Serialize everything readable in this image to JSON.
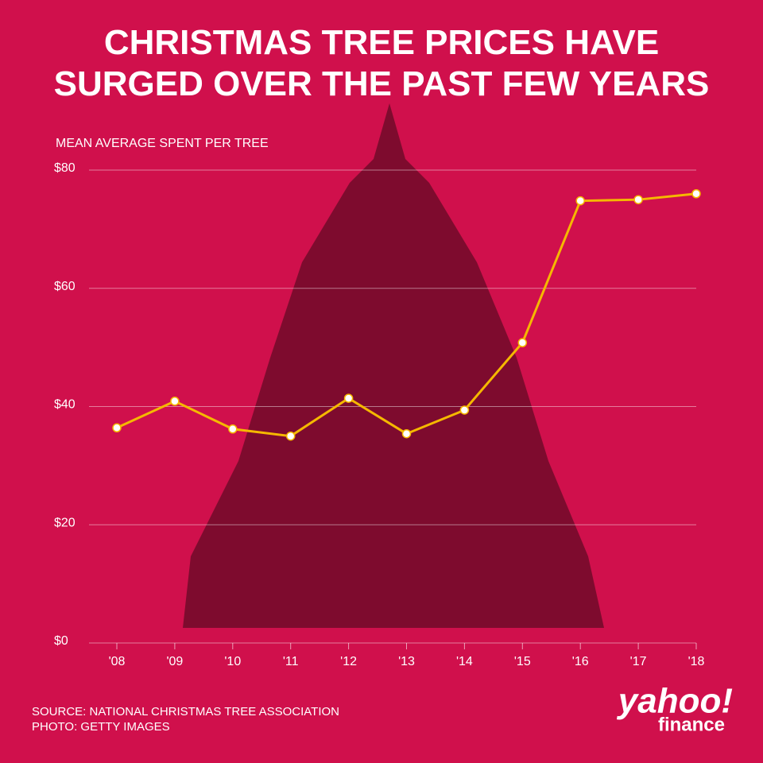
{
  "chart_data": {
    "type": "line",
    "title": "CHRISTMAS TREE PRICES HAVE SURGED OVER THE PAST FEW YEARS",
    "y_label": "MEAN AVERAGE SPENT PER TREE",
    "categories": [
      "'08",
      "'09",
      "'10",
      "'11",
      "'12",
      "'13",
      "'14",
      "'15",
      "'16",
      "'17",
      "'18"
    ],
    "values": [
      36.4,
      40.9,
      36.2,
      35.0,
      41.4,
      35.4,
      39.4,
      50.8,
      74.8,
      75.0,
      76.0
    ],
    "color": "#f5b800",
    "ylim": [
      0,
      80
    ],
    "yticks": [
      {
        "value": 0,
        "label": "$0"
      },
      {
        "value": 20,
        "label": "$20"
      },
      {
        "value": 40,
        "label": "$40"
      },
      {
        "value": 60,
        "label": "$60"
      },
      {
        "value": 80,
        "label": "$80"
      }
    ],
    "grid": true,
    "source": "SOURCE:  NATIONAL CHRISTMAS TREE ASSOCIATION",
    "credit": "PHOTO: GETTY IMAGES",
    "brand": "yahoo!",
    "brand_sub": "finance"
  }
}
